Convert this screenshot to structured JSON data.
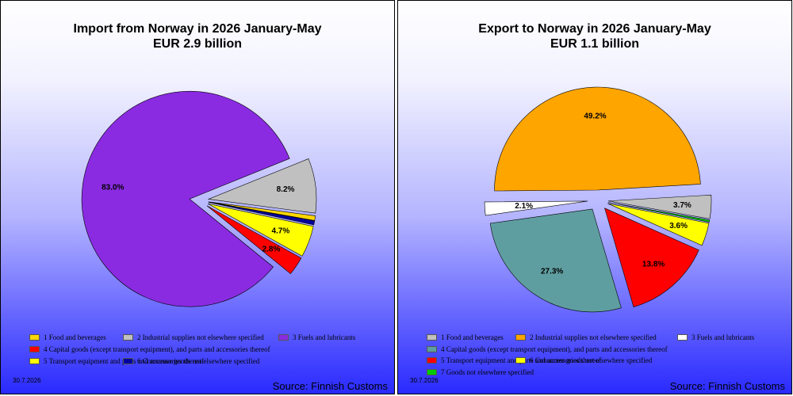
{
  "date": "30.7.2026",
  "source": "Source: Finnish Customs",
  "chart_data": [
    {
      "type": "pie",
      "title": "Import from Norway in 2026 January-May",
      "subtitle": "EUR   2.9 billion",
      "slices": [
        {
          "name": "1 Food and beverages",
          "value": 0.7,
          "label": "",
          "color": "#ffd700"
        },
        {
          "name": "2 Industrial supplies not elsewhere specified",
          "value": 8.2,
          "label": "8.2%",
          "color": "#c0c0c0"
        },
        {
          "name": "3 Fuels and lubricants",
          "value": 83.0,
          "label": "83.0%",
          "color": "#8a2be2"
        },
        {
          "name": "4 Capital goods (except transport equipment), and parts and accessories thereof",
          "value": 2.8,
          "label": "2.8%",
          "color": "#ff0000"
        },
        {
          "name": "5  Transport equipment and parts and accessories thereof",
          "value": 4.7,
          "label": "4.7%",
          "color": "#ffff00"
        },
        {
          "name": "6 Consumer goods not elsewhere specified",
          "value": 0.6,
          "label": "",
          "color": "#0000a0"
        }
      ]
    },
    {
      "type": "pie",
      "title": "Export to Norway in 2026 January-May",
      "subtitle": "EUR   1.1 billion",
      "slices": [
        {
          "name": "1 Food and beverages",
          "value": 3.7,
          "label": "3.7%",
          "color": "#c0c0c0"
        },
        {
          "name": "2 Industrial supplies not elsewhere specified",
          "value": 49.2,
          "label": "49.2%",
          "color": "#ffa500"
        },
        {
          "name": "3 Fuels and lubricants",
          "value": 2.1,
          "label": "2.1%",
          "color": "#ffffff"
        },
        {
          "name": "4 Capital goods (except transport equipment), and parts and accessories thereof",
          "value": 27.3,
          "label": "27.3%",
          "color": "#5f9ea0"
        },
        {
          "name": "5  Transport equipment and parts and accessories thereof",
          "value": 13.8,
          "label": "13.8%",
          "color": "#ff0000"
        },
        {
          "name": "6 Consumer goods not elsewhere specified",
          "value": 3.6,
          "label": "3.6%",
          "color": "#ffff00"
        },
        {
          "name": "7 Goods not elsewhere specified",
          "value": 0.3,
          "label": "",
          "color": "#00cc00"
        }
      ]
    }
  ]
}
